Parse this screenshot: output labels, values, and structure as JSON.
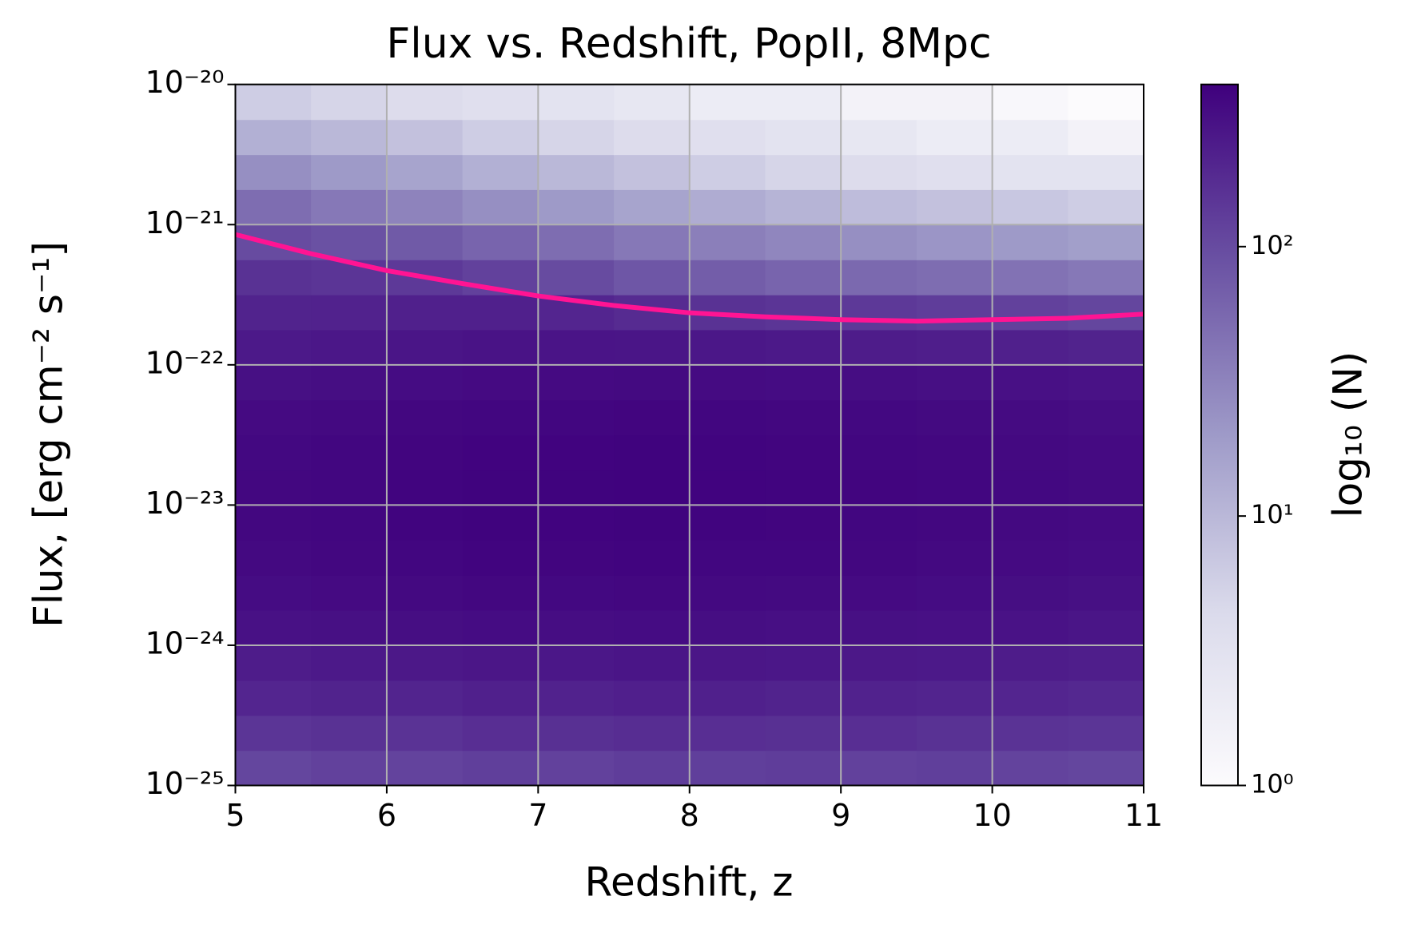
{
  "chart_data": {
    "type": "heatmap",
    "title": "Flux vs. Redshift, PopII, 8Mpc",
    "xlabel": "Redshift, z",
    "ylabel": "Flux, [erg cm⁻² s⁻¹]",
    "colorbar_label": "log₁₀ (N)",
    "xlim": [
      5,
      11
    ],
    "xticks": [
      5,
      6,
      7,
      8,
      9,
      10,
      11
    ],
    "ylim": [
      1e-25,
      1e-20
    ],
    "ylog": true,
    "yticks": [
      {
        "value": 1e-25,
        "label": "10⁻²⁵"
      },
      {
        "value": 1e-24,
        "label": "10⁻²⁴"
      },
      {
        "value": 1e-23,
        "label": "10⁻²³"
      },
      {
        "value": 1e-22,
        "label": "10⁻²²"
      },
      {
        "value": 1e-21,
        "label": "10⁻²¹"
      },
      {
        "value": 1e-20,
        "label": "10⁻²⁰"
      }
    ],
    "grid": true,
    "colormap": [
      "#fcfbfd",
      "#dadaeb",
      "#9e9ac8",
      "#6a51a3",
      "#3f007d"
    ],
    "clim": [
      1,
      400
    ],
    "clog": true,
    "cticks": [
      {
        "value": 1,
        "label": "10⁰"
      },
      {
        "value": 10,
        "label": "10¹"
      },
      {
        "value": 100,
        "label": "10²"
      }
    ],
    "xbins": [
      5,
      5.5,
      6,
      6.5,
      7,
      7.5,
      8,
      8.5,
      9,
      9.5,
      10,
      10.5,
      11
    ],
    "ybins": [
      1e-25,
      1.78e-25,
      3.16e-25,
      5.62e-25,
      1e-24,
      1.78e-24,
      3.16e-24,
      5.62e-24,
      1e-23,
      1.78e-23,
      3.16e-23,
      5.62e-23,
      1e-22,
      1.78e-22,
      3.16e-22,
      5.62e-22,
      1e-21,
      1.78e-21,
      3.16e-21,
      5.62e-21,
      1e-20
    ],
    "z": [
      [
        110,
        120,
        115,
        125,
        120,
        130,
        125,
        130,
        120,
        125,
        115,
        110
      ],
      [
        150,
        160,
        155,
        170,
        165,
        175,
        170,
        165,
        170,
        160,
        155,
        150
      ],
      [
        200,
        210,
        205,
        220,
        215,
        225,
        220,
        210,
        215,
        205,
        200,
        190
      ],
      [
        240,
        250,
        255,
        265,
        260,
        270,
        265,
        260,
        255,
        250,
        240,
        230
      ],
      [
        290,
        300,
        310,
        320,
        315,
        320,
        310,
        305,
        300,
        295,
        285,
        270
      ],
      [
        320,
        330,
        340,
        350,
        345,
        350,
        340,
        335,
        330,
        320,
        310,
        300
      ],
      [
        340,
        350,
        360,
        370,
        365,
        370,
        360,
        355,
        350,
        340,
        330,
        320
      ],
      [
        350,
        360,
        370,
        380,
        375,
        380,
        370,
        365,
        360,
        350,
        340,
        330
      ],
      [
        350,
        360,
        370,
        380,
        380,
        385,
        375,
        370,
        365,
        355,
        345,
        335
      ],
      [
        345,
        355,
        365,
        375,
        375,
        380,
        370,
        365,
        360,
        350,
        340,
        330
      ],
      [
        330,
        340,
        350,
        360,
        360,
        365,
        355,
        350,
        345,
        335,
        325,
        315
      ],
      [
        300,
        310,
        320,
        330,
        330,
        335,
        325,
        320,
        315,
        305,
        295,
        285
      ],
      [
        250,
        260,
        270,
        280,
        275,
        270,
        260,
        250,
        240,
        230,
        220,
        210
      ],
      [
        210,
        215,
        220,
        220,
        200,
        180,
        160,
        150,
        140,
        130,
        120,
        110
      ],
      [
        160,
        150,
        140,
        120,
        100,
        80,
        70,
        60,
        55,
        50,
        45,
        40
      ],
      [
        100,
        90,
        75,
        60,
        50,
        40,
        35,
        30,
        25,
        22,
        20,
        18
      ],
      [
        50,
        40,
        32,
        25,
        20,
        16,
        13,
        11,
        9,
        8,
        7,
        6
      ],
      [
        25,
        20,
        16,
        12,
        10,
        8,
        6,
        5,
        4,
        3.5,
        3,
        3
      ],
      [
        12,
        10,
        8,
        6,
        5,
        4,
        3.5,
        3,
        2.5,
        2,
        2,
        1.5
      ],
      [
        6,
        5,
        4,
        3.5,
        3,
        2.5,
        2,
        2,
        1.5,
        1.5,
        1.2,
        1
      ]
    ],
    "line": {
      "color": "#ff1493",
      "x": [
        5,
        5.5,
        6,
        6.5,
        7,
        7.5,
        8,
        8.5,
        9,
        9.5,
        10,
        10.5,
        11
      ],
      "values": [
        8.5e-22,
        6.2e-22,
        4.7e-22,
        3.8e-22,
        3.1e-22,
        2.65e-22,
        2.35e-22,
        2.2e-22,
        2.1e-22,
        2.05e-22,
        2.1e-22,
        2.15e-22,
        2.3e-22
      ]
    }
  }
}
